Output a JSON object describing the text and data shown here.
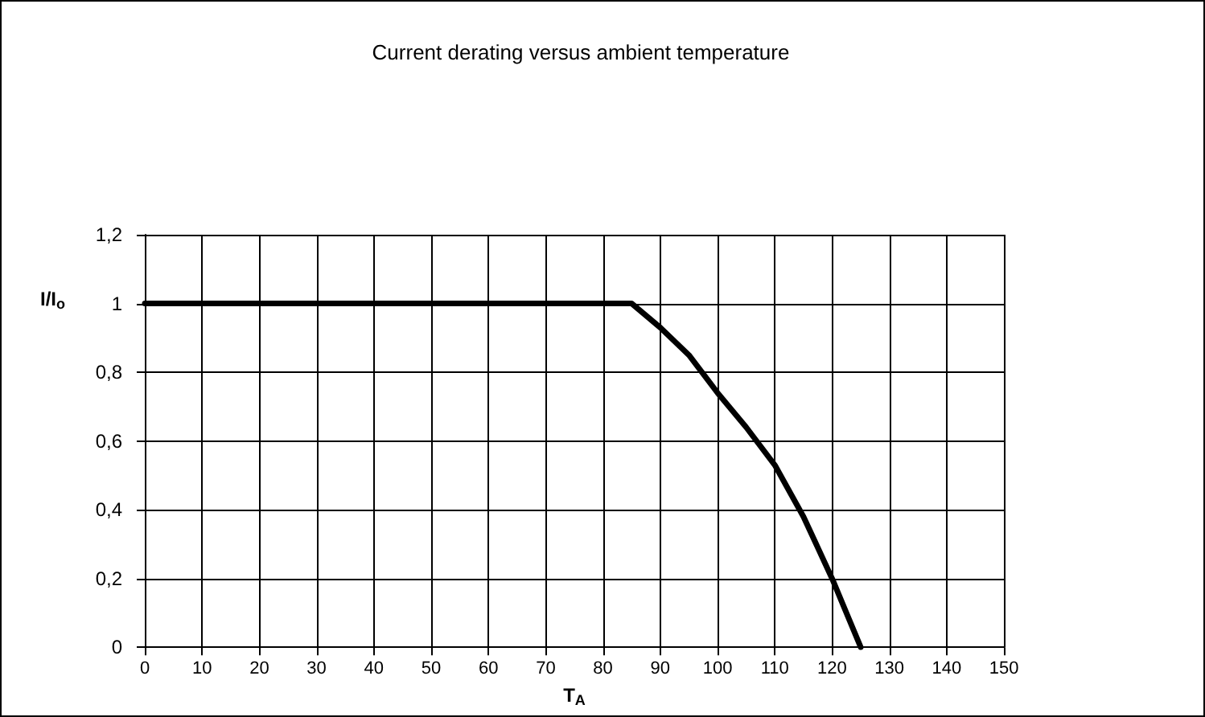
{
  "chart_data": {
    "type": "line",
    "title": "Current derating versus ambient temperature",
    "xlabel": "T$_{A}$",
    "ylabel": "I/I$_{o}$",
    "x": [
      0,
      85,
      90,
      95,
      100,
      105,
      110,
      115,
      120,
      125
    ],
    "series": [
      {
        "color": "#000000",
        "values": [
          1,
          1,
          0.93,
          0.85,
          0.74,
          0.64,
          0.53,
          0.38,
          0.2,
          0
        ]
      }
    ],
    "xlim": [
      0,
      150
    ],
    "xticks": [
      0,
      10,
      20,
      30,
      40,
      50,
      60,
      70,
      80,
      90,
      100,
      110,
      120,
      130,
      140,
      150
    ],
    "ylim": [
      0,
      1.2
    ],
    "yticks": [
      0,
      {
        "value": 0.2,
        "label": "0,2"
      },
      {
        "value": 0.4,
        "label": "0,4"
      },
      {
        "value": 0.6,
        "label": "0,6"
      },
      {
        "value": 0.8,
        "label": "0,8"
      },
      1,
      {
        "value": 1.2,
        "label": "1,2"
      }
    ],
    "grid": true,
    "marker": "none",
    "line_style": "solid"
  }
}
